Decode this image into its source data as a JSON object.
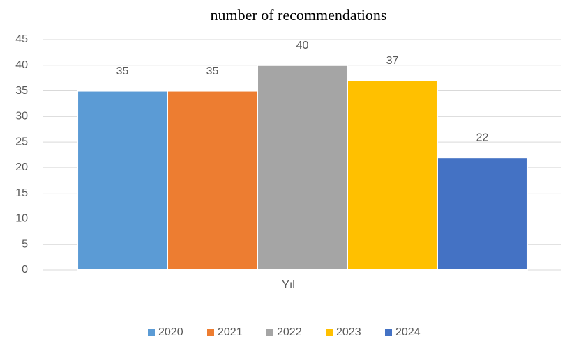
{
  "chart_data": {
    "type": "bar",
    "title": "number of recommendations",
    "categories": [
      "Yıl"
    ],
    "series": [
      {
        "name": "2020",
        "color": "#5b9bd5",
        "values": [
          35
        ]
      },
      {
        "name": "2021",
        "color": "#ed7d31",
        "values": [
          35
        ]
      },
      {
        "name": "2022",
        "color": "#a5a5a5",
        "values": [
          40
        ]
      },
      {
        "name": "2023",
        "color": "#ffc000",
        "values": [
          37
        ]
      },
      {
        "name": "2024",
        "color": "#4472c4",
        "values": [
          22
        ]
      }
    ],
    "ylim": [
      0,
      45
    ],
    "yticks": [
      0,
      5,
      10,
      15,
      20,
      25,
      30,
      35,
      40,
      45
    ],
    "grid": true,
    "legend": "bottom"
  }
}
